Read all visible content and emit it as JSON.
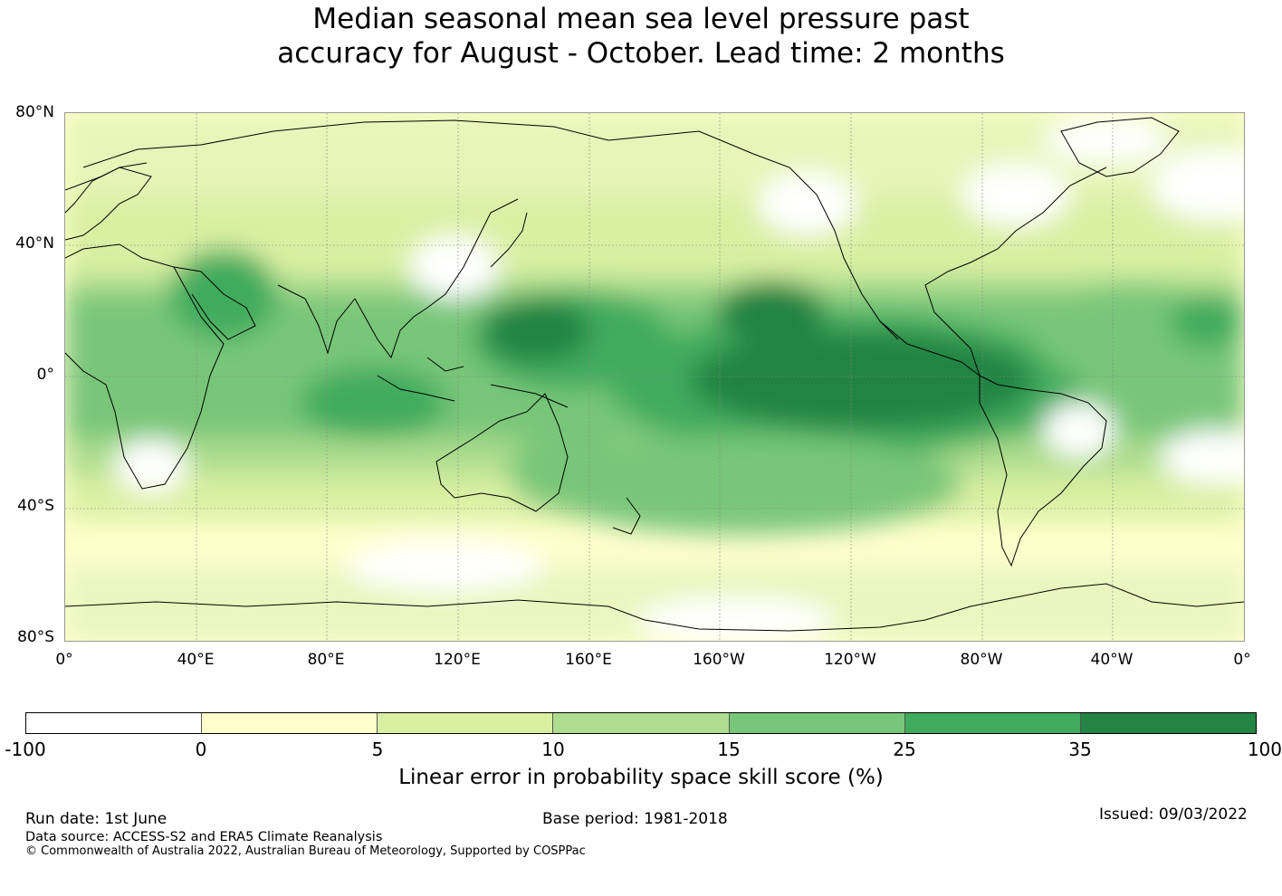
{
  "title": {
    "line1": "Median seasonal mean sea level pressure past",
    "line2": "accuracy for August - October. Lead time: 2 months"
  },
  "map": {
    "projection": "equirectangular",
    "lon_range": [
      0,
      360
    ],
    "lat_range": [
      -80,
      80
    ],
    "lat_labels": [
      "80°N",
      "40°N",
      "0°",
      "40°S",
      "80°S"
    ],
    "lon_labels": [
      "0°",
      "40°E",
      "80°E",
      "120°E",
      "160°E",
      "160°W",
      "120°W",
      "80°W",
      "40°W",
      "0°"
    ],
    "gridlines": true
  },
  "legend": {
    "title": "Linear error in probability space skill score (%)",
    "ticks": [
      "-100",
      "0",
      "5",
      "10",
      "15",
      "25",
      "35",
      "100"
    ],
    "colors": [
      "#ffffff",
      "#ffffcc",
      "#d9f0a3",
      "#addd8e",
      "#78c679",
      "#41ab5d",
      "#238443"
    ]
  },
  "footer": {
    "run_date": "Run date: 1st June",
    "base_period": "Base period: 1981-2018",
    "issued": "Issued: 09/03/2022",
    "data_source": "Data source: ACCESS-S2 and ERA5 Climate Reanalysis",
    "copyright": "© Commonwealth of Australia 2022, Australian Bureau of Meteorology, Supported by COSPPac"
  }
}
